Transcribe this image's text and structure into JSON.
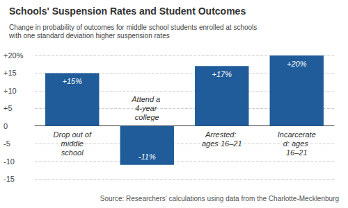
{
  "chart_data": {
    "type": "bar",
    "title": "Schools' Suspension Rates and Student Outcomes",
    "ylabel": "Change in probability of outcomes for middle school students enrolled at schools with one standard deviation higher suspension rates",
    "categories": [
      "Drop out of middle school",
      "Attend a 4-year college",
      "Arrested: ages 16–21",
      "Incarcerated: ages 16–21"
    ],
    "values": [
      15,
      -11,
      17,
      20
    ],
    "value_labels": [
      "+15%",
      "-11%",
      "+17%",
      "+20%"
    ],
    "data_labels": true,
    "color": "#1f5c99",
    "ylim": [
      -15,
      20
    ],
    "yticks": [
      {
        "value": -15,
        "label": "-15"
      },
      {
        "value": -10,
        "label": "-10"
      },
      {
        "value": -5,
        "label": "-5"
      },
      0,
      {
        "value": 5,
        "label": "+5"
      },
      {
        "value": 10,
        "label": "+10"
      },
      {
        "value": 15,
        "label": "+15"
      },
      {
        "value": 20,
        "label": "+20%"
      }
    ],
    "grid": true,
    "annotations": [
      "Source: Researchers' calculations using data from the Charlotte-Mecklenburg"
    ]
  }
}
